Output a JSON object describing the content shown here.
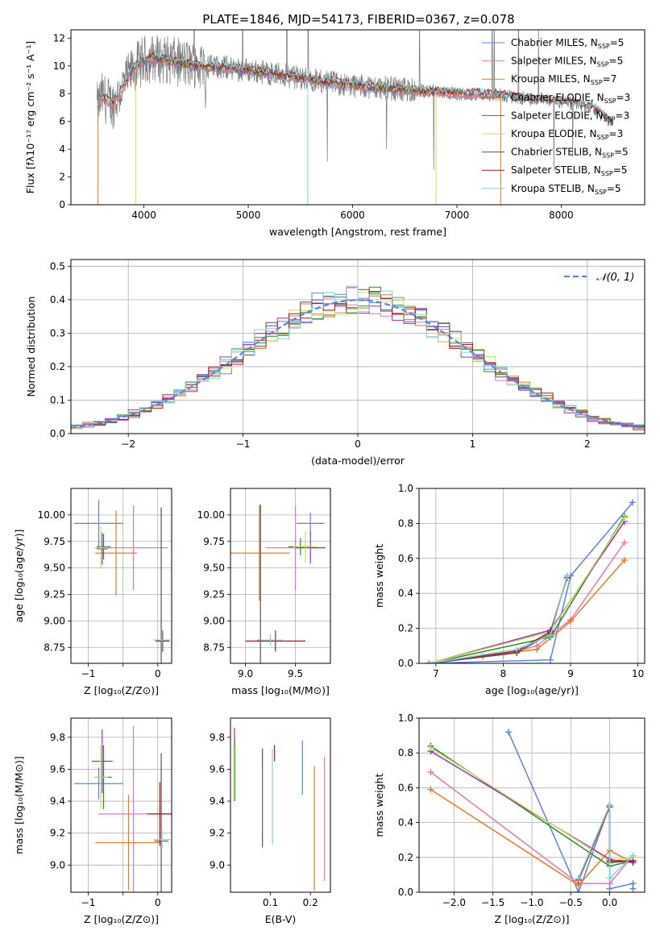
{
  "title": "PLATE=1846, MJD=54173, FIBERID=0367, z=0.078",
  "colors": {
    "Chabrier MILES": "#5b84e0",
    "Salpeter MILES": "#e678b4",
    "Kroupa MILES": "#e87b22",
    "Chabrier ELODIE": "#2a8a2a",
    "Salpeter ELODIE": "#9b30c8",
    "Kroupa ELODIE": "#c6e05a",
    "Chabrier STELIB": "#555555",
    "Salpeter STELIB": "#b01818",
    "Kroupa STELIB": "#7fd3dc",
    "data": "#777777",
    "grid": "#b0b0b0"
  },
  "chart_data": [
    {
      "id": "spectrum",
      "type": "line",
      "xlabel": "wavelength [Angstrom, rest frame]",
      "ylabel": "Flux [fλ10⁻¹⁷ erg cm⁻² s⁻¹ A⁻¹]",
      "xlim": [
        3300,
        8800
      ],
      "ylim": [
        0,
        12.6
      ],
      "xticks": [
        4000,
        5000,
        6000,
        7000,
        8000
      ],
      "yticks": [
        0,
        2,
        4,
        6,
        8,
        10,
        12
      ],
      "grid": false,
      "legend": "top-right",
      "legend_entries": [
        "Chabrier MILES, N_SSP=5",
        "Salpeter MILES, N_SSP=5",
        "Kroupa MILES, N_SSP=7",
        "Chabrier ELODIE, N_SSP=3",
        "Salpeter ELODIE, N_SSP=3",
        "Kroupa ELODIE, N_SSP=3",
        "Chabrier STELIB, N_SSP=5",
        "Salpeter STELIB, N_SSP=5",
        "Kroupa STELIB, N_SSP=5"
      ],
      "model_shape": {
        "x": [
          3550,
          3600,
          3700,
          3800,
          3900,
          4000,
          4100,
          4300,
          4500,
          4800,
          5200,
          5600,
          6000,
          6500,
          7000,
          7400,
          7700,
          8000,
          8300,
          8500
        ],
        "y": [
          7.0,
          7.8,
          7.2,
          8.5,
          9.8,
          10.4,
          10.6,
          10.3,
          10.0,
          9.9,
          9.5,
          9.0,
          8.6,
          8.3,
          8.0,
          7.9,
          7.6,
          7.4,
          7.0,
          5.8
        ]
      }
    },
    {
      "id": "residuals",
      "type": "histogram",
      "xlabel": "(data-model)/error",
      "ylabel": "Normed distribution",
      "xlim": [
        -2.5,
        2.5
      ],
      "ylim": [
        0,
        0.52
      ],
      "xticks": [
        -2,
        -1,
        0,
        1,
        2
      ],
      "yticks": [
        0.0,
        0.1,
        0.2,
        0.3,
        0.4,
        0.5
      ],
      "grid": true,
      "legend": "top-right",
      "legend_label": "𝒩(0, 1)",
      "bin_width": 0.1
    },
    {
      "id": "age-Z",
      "type": "scatter",
      "xlabel": "Z [log₁₀(Z/Z⊙)]",
      "ylabel": "age  [log₁₀(age/yr)]",
      "xlim": [
        -1.25,
        0.2
      ],
      "ylim": [
        8.6,
        10.25
      ],
      "xticks": [
        -1,
        -0.5,
        0
      ],
      "xticklabels": [
        "−1",
        "",
        "0"
      ],
      "yticks": [
        8.75,
        9.0,
        9.25,
        9.5,
        9.75,
        10.0
      ],
      "grid": true,
      "points": [
        {
          "model": "Chabrier MILES",
          "x": -0.85,
          "y": 9.92,
          "xerr": 0.35,
          "yerr": 0.22
        },
        {
          "model": "Salpeter MILES",
          "x": -0.35,
          "y": 9.69,
          "xerr": 0.5,
          "yerr": 0.4
        },
        {
          "model": "Kroupa MILES",
          "x": -0.6,
          "y": 9.64,
          "xerr": 0.3,
          "yerr": 0.4
        },
        {
          "model": "Chabrier ELODIE",
          "x": -0.78,
          "y": 9.7,
          "xerr": 0.1,
          "yerr": 0.12
        },
        {
          "model": "Salpeter ELODIE",
          "x": -0.8,
          "y": 9.68,
          "xerr": 0.08,
          "yerr": 0.15
        },
        {
          "model": "Kroupa ELODIE",
          "x": -0.82,
          "y": 9.69,
          "xerr": 0.1,
          "yerr": 0.2
        },
        {
          "model": "Chabrier STELIB",
          "x": 0.05,
          "y": 8.82,
          "xerr": 0.1,
          "yerr": 1.25
        },
        {
          "model": "Salpeter STELIB",
          "x": 0.07,
          "y": 8.81,
          "xerr": 0.1,
          "yerr": 0.1
        },
        {
          "model": "Kroupa STELIB",
          "x": 0.06,
          "y": 8.82,
          "xerr": 0.12,
          "yerr": 0.1
        }
      ]
    },
    {
      "id": "age-mass",
      "type": "scatter",
      "xlabel": "mass [log₁₀(M/M⊙)]",
      "xlim": [
        8.85,
        9.85
      ],
      "ylim": [
        8.6,
        10.25
      ],
      "xticks": [
        9.0,
        9.5
      ],
      "xticklabels": [
        "9.0",
        "9.5"
      ],
      "yticks": [
        8.75,
        9.0,
        9.25,
        9.5,
        9.75,
        10.0
      ],
      "grid": true,
      "points": [
        {
          "model": "Chabrier MILES",
          "x": 9.65,
          "y": 9.92,
          "xerr": 0.14,
          "yerr": 0.1
        },
        {
          "model": "Salpeter MILES",
          "x": 9.5,
          "y": 9.69,
          "xerr": 0.3,
          "yerr": 0.4
        },
        {
          "model": "Kroupa MILES",
          "x": 9.14,
          "y": 9.64,
          "xerr": 0.3,
          "yerr": 0.45
        },
        {
          "model": "Chabrier ELODIE",
          "x": 9.55,
          "y": 9.7,
          "xerr": 0.12,
          "yerr": 0.08
        },
        {
          "model": "Salpeter ELODIE",
          "x": 9.65,
          "y": 9.69,
          "xerr": 0.15,
          "yerr": 0.15
        },
        {
          "model": "Kroupa ELODIE",
          "x": 9.6,
          "y": 9.7,
          "xerr": 0.12,
          "yerr": 0.15
        },
        {
          "model": "Chabrier STELIB",
          "x": 9.15,
          "y": 8.82,
          "xerr": 0.03,
          "yerr": 1.28
        },
        {
          "model": "Salpeter STELIB",
          "x": 9.3,
          "y": 8.81,
          "xerr": 0.3,
          "yerr": 0.1
        },
        {
          "model": "Kroupa STELIB",
          "x": 9.25,
          "y": 8.82,
          "xerr": 0.12,
          "yerr": 0.05
        }
      ]
    },
    {
      "id": "weight-age",
      "type": "line",
      "xlabel": "age  [log₁₀(age/yr)]",
      "ylabel": "mass weight",
      "xlim": [
        6.75,
        10.1
      ],
      "ylim": [
        0,
        1.0
      ],
      "xticks": [
        7,
        8,
        9,
        10
      ],
      "yticks": [
        0.0,
        0.2,
        0.4,
        0.6,
        0.8,
        1.0
      ],
      "grid": true,
      "series": [
        {
          "model": "Chabrier MILES",
          "x": [
            6.9,
            8.7,
            9.0,
            9.92
          ],
          "y": [
            0.0,
            0.02,
            0.5,
            0.92
          ]
        },
        {
          "model": "Salpeter MILES",
          "x": [
            6.9,
            8.0,
            8.5,
            9.0,
            9.8
          ],
          "y": [
            0.0,
            0.05,
            0.1,
            0.25,
            0.69
          ]
        },
        {
          "model": "Kroupa MILES",
          "x": [
            6.9,
            7.7,
            8.5,
            9.0,
            9.8
          ],
          "y": [
            0.0,
            0.04,
            0.08,
            0.24,
            0.59
          ]
        },
        {
          "model": "Chabrier ELODIE",
          "x": [
            6.9,
            8.7,
            9.8
          ],
          "y": [
            0.0,
            0.15,
            0.84
          ]
        },
        {
          "model": "Salpeter ELODIE",
          "x": [
            6.9,
            8.7,
            9.8
          ],
          "y": [
            0.0,
            0.19,
            0.81
          ]
        },
        {
          "model": "Kroupa ELODIE",
          "x": [
            6.9,
            8.7,
            9.8
          ],
          "y": [
            0.0,
            0.18,
            0.83
          ]
        },
        {
          "model": "Chabrier STELIB",
          "x": [
            6.9,
            8.2,
            8.7,
            8.95
          ],
          "y": [
            0.0,
            0.06,
            0.17,
            0.5
          ]
        },
        {
          "model": "Salpeter STELIB",
          "x": [
            6.9,
            8.2,
            8.7,
            8.95
          ],
          "y": [
            0.0,
            0.07,
            0.18,
            0.49
          ]
        },
        {
          "model": "Kroupa STELIB",
          "x": [
            6.9,
            8.2,
            8.7,
            8.95
          ],
          "y": [
            0.0,
            0.08,
            0.16,
            0.5
          ]
        }
      ]
    },
    {
      "id": "mass-Z",
      "type": "scatter",
      "xlabel": "Z [log₁₀(Z/Z⊙)]",
      "ylabel": "mass [log₁₀(M/M⊙)]",
      "xlim": [
        -1.25,
        0.2
      ],
      "ylim": [
        8.83,
        9.92
      ],
      "xticks": [
        -1,
        -0.5,
        0
      ],
      "xticklabels": [
        "−1",
        "",
        "0"
      ],
      "yticks": [
        9.0,
        9.2,
        9.4,
        9.6,
        9.8
      ],
      "grid": true,
      "points": [
        {
          "model": "Chabrier MILES",
          "x": -0.85,
          "y": 9.51,
          "xerr": 0.35,
          "yerr": 0.1
        },
        {
          "model": "Salpeter MILES",
          "x": -0.35,
          "y": 9.32,
          "xerr": 0.5,
          "yerr": 0.55
        },
        {
          "model": "Kroupa MILES",
          "x": -0.42,
          "y": 9.14,
          "xerr": 0.48,
          "yerr": 0.3
        },
        {
          "model": "Chabrier ELODIE",
          "x": -0.78,
          "y": 9.55,
          "xerr": 0.12,
          "yerr": 0.2
        },
        {
          "model": "Salpeter ELODIE",
          "x": -0.8,
          "y": 9.65,
          "xerr": 0.15,
          "yerr": 0.2
        },
        {
          "model": "Kroupa ELODIE",
          "x": -0.82,
          "y": 9.55,
          "xerr": 0.1,
          "yerr": 0.2
        },
        {
          "model": "Chabrier STELIB",
          "x": 0.05,
          "y": 9.15,
          "xerr": 0.1,
          "yerr": 0.55
        },
        {
          "model": "Salpeter STELIB",
          "x": 0.03,
          "y": 9.32,
          "xerr": 0.18,
          "yerr": 0.2
        },
        {
          "model": "Kroupa STELIB",
          "x": 0.06,
          "y": 9.16,
          "xerr": 0.12,
          "yerr": 0.06
        }
      ]
    },
    {
      "id": "mass-EBV",
      "type": "scatter",
      "xlabel": "E(B-V)",
      "xlim": [
        0.0,
        0.25
      ],
      "ylim": [
        8.83,
        9.92
      ],
      "xticks": [
        0.1,
        0.2
      ],
      "xticklabels": [
        "0.1",
        "0.2"
      ],
      "yticks": [
        9.0,
        9.2,
        9.4,
        9.6,
        9.8
      ],
      "grid": false,
      "points": [
        {
          "model": "Chabrier MILES",
          "x": 0.18,
          "y": 9.61,
          "yerr": 0.17
        },
        {
          "model": "Salpeter MILES",
          "x": 0.235,
          "y": 9.29,
          "yerr": 0.39
        },
        {
          "model": "Kroupa MILES",
          "x": 0.21,
          "y": 9.23,
          "yerr": 0.39
        },
        {
          "model": "Chabrier ELODIE",
          "x": 0.01,
          "y": 9.6,
          "yerr": 0.2
        },
        {
          "model": "Salpeter ELODIE",
          "x": 0.01,
          "y": 9.8,
          "yerr": 0.06
        },
        {
          "model": "Kroupa ELODIE",
          "x": 0.012,
          "y": 9.6,
          "yerr": 0.2
        },
        {
          "model": "Chabrier STELIB",
          "x": 0.08,
          "y": 9.42,
          "yerr": 0.31
        },
        {
          "model": "Salpeter STELIB",
          "x": 0.11,
          "y": 9.7,
          "yerr": 0.05
        },
        {
          "model": "Kroupa STELIB",
          "x": 0.105,
          "y": 9.43,
          "yerr": 0.3
        }
      ]
    },
    {
      "id": "weight-Z",
      "type": "line",
      "xlabel": "Z [log₁₀(Z/Z⊙)]",
      "ylabel": "mass weight",
      "xlim": [
        -2.45,
        0.45
      ],
      "ylim": [
        0,
        1.0
      ],
      "xticks": [
        -2.0,
        -1.5,
        -1.0,
        -0.5,
        0.0
      ],
      "xticklabels": [
        "−2.0",
        "−1.5",
        "−1.0",
        "−0.5",
        "0.0"
      ],
      "yticks": [
        0.0,
        0.2,
        0.4,
        0.6,
        0.8,
        1.0
      ],
      "grid": true,
      "series": [
        {
          "model": "Chabrier MILES",
          "x": [
            -1.3,
            -0.4,
            0.0,
            0.0,
            0.3,
            0.3
          ],
          "y": [
            0.92,
            0.0,
            0.5,
            0.02,
            0.05,
            0.02
          ]
        },
        {
          "model": "Salpeter MILES",
          "x": [
            -2.3,
            -0.4,
            0.0,
            0.3
          ],
          "y": [
            0.69,
            0.05,
            0.05,
            0.21
          ]
        },
        {
          "model": "Kroupa MILES",
          "x": [
            -2.3,
            -0.4,
            0.0,
            0.3
          ],
          "y": [
            0.59,
            0.04,
            0.24,
            0.17
          ]
        },
        {
          "model": "Chabrier ELODIE",
          "x": [
            -2.3,
            0.0,
            0.3
          ],
          "y": [
            0.84,
            0.15,
            0.18
          ]
        },
        {
          "model": "Salpeter ELODIE",
          "x": [
            -2.3,
            0.0,
            0.3
          ],
          "y": [
            0.81,
            0.19,
            0.17
          ]
        },
        {
          "model": "Kroupa ELODIE",
          "x": [
            -2.3,
            0.0,
            0.3
          ],
          "y": [
            0.83,
            0.18,
            0.2
          ]
        },
        {
          "model": "Chabrier STELIB",
          "x": [
            -0.4,
            0.0,
            0.0,
            0.3
          ],
          "y": [
            0.08,
            0.5,
            0.17,
            0.18
          ]
        },
        {
          "model": "Salpeter STELIB",
          "x": [
            -0.4,
            0.0,
            0.0,
            0.3
          ],
          "y": [
            0.07,
            0.49,
            0.18,
            0.18
          ]
        },
        {
          "model": "Kroupa STELIB",
          "x": [
            -0.4,
            0.0,
            0.0,
            0.3
          ],
          "y": [
            0.08,
            0.5,
            0.08,
            0.21
          ]
        }
      ]
    }
  ]
}
